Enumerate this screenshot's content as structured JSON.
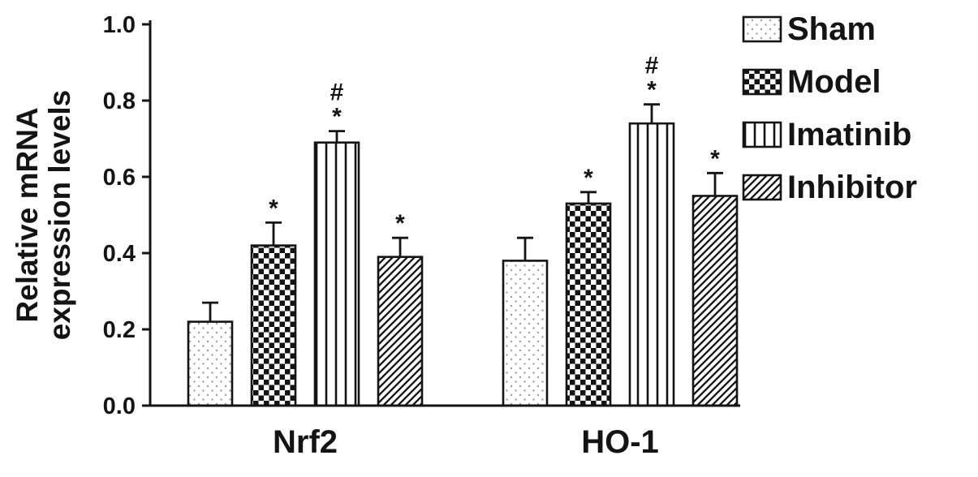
{
  "figure": {
    "background_color": "#ffffff",
    "ink_color": "#141414"
  },
  "chart_data": {
    "type": "bar",
    "title": "",
    "ylabel_lines": [
      "Relative mRNA",
      "expression levels"
    ],
    "categories": [
      "Nrf2",
      "HO-1"
    ],
    "series": [
      {
        "name": "Sham",
        "pattern": "dots",
        "values": [
          0.22,
          0.38
        ],
        "errors": [
          0.05,
          0.06
        ],
        "sig_labels": [
          "",
          ""
        ]
      },
      {
        "name": "Model",
        "pattern": "checkerboard",
        "values": [
          0.42,
          0.53
        ],
        "errors": [
          0.06,
          0.03
        ],
        "sig_labels": [
          "*",
          "*"
        ]
      },
      {
        "name": "Imatinib",
        "pattern": "vertical-lines",
        "values": [
          0.69,
          0.74
        ],
        "errors": [
          0.03,
          0.05
        ],
        "sig_labels": [
          "#*",
          "#*"
        ]
      },
      {
        "name": "Inhibitor",
        "pattern": "diagonal-lines",
        "values": [
          0.39,
          0.55
        ],
        "errors": [
          0.05,
          0.06
        ],
        "sig_labels": [
          "*",
          "*"
        ]
      }
    ],
    "ylim": [
      0.0,
      1.0
    ],
    "yticks": [
      "0.0",
      "0.2",
      "0.4",
      "0.6",
      "0.8",
      "1.0"
    ],
    "grid": false,
    "legend_position": "top-right",
    "legend_items": [
      "Sham",
      "Model",
      "Imatinib",
      "Inhibitor"
    ]
  }
}
